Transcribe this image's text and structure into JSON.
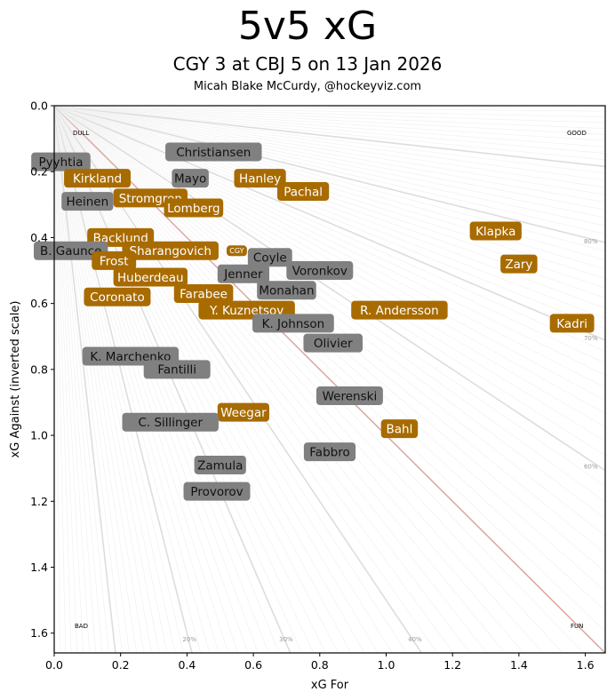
{
  "chart_data": {
    "type": "scatter",
    "title": "5v5 xG",
    "subtitle": "CGY 3 at CBJ 5 on 13 Jan 2026",
    "credit": "Micah Blake McCurdy, @hockeyviz.com",
    "xlabel": "xG For",
    "ylabel": "xG Against (inverted scale)",
    "xlim": [
      0,
      1.66
    ],
    "ylim": [
      0,
      1.66
    ],
    "y_inverted": true,
    "xticks": [
      "0.0",
      "0.2",
      "0.4",
      "0.6",
      "0.8",
      "1.0",
      "1.2",
      "1.4",
      "1.6"
    ],
    "yticks": [
      "0.0",
      "0.2",
      "0.4",
      "0.6",
      "0.8",
      "1.0",
      "1.2",
      "1.4",
      "1.6"
    ],
    "corner_labels": {
      "top_left": "DULL",
      "top_right": "GOOD",
      "bottom_left": "BAD",
      "bottom_right": "FUN"
    },
    "share_lines_labels": {
      "bottom": [
        "20%",
        "30%",
        "40%"
      ],
      "right": [
        "60%",
        "70%",
        "80%"
      ]
    },
    "colors": {
      "CGY": "#a86b00",
      "CBJ": "#808080",
      "even_line": "#d9a79d",
      "major_ray": "#dddddd",
      "minor_ray": "#f2f2f2"
    },
    "points": [
      {
        "label": "Pyyhtia",
        "team": "CBJ",
        "x": 0.02,
        "y": 0.17
      },
      {
        "label": "Christiansen",
        "team": "CBJ",
        "x": 0.48,
        "y": 0.14
      },
      {
        "label": "Kirkland",
        "team": "CGY",
        "x": 0.13,
        "y": 0.22
      },
      {
        "label": "Mayo",
        "team": "CBJ",
        "x": 0.41,
        "y": 0.22
      },
      {
        "label": "Hanley",
        "team": "CGY",
        "x": 0.62,
        "y": 0.22
      },
      {
        "label": "Pachal",
        "team": "CGY",
        "x": 0.75,
        "y": 0.26
      },
      {
        "label": "Heinen",
        "team": "CBJ",
        "x": 0.1,
        "y": 0.29
      },
      {
        "label": "Stromgren",
        "team": "CGY",
        "x": 0.29,
        "y": 0.28
      },
      {
        "label": "Lomberg",
        "team": "CGY",
        "x": 0.42,
        "y": 0.31
      },
      {
        "label": "Klapka",
        "team": "CGY",
        "x": 1.33,
        "y": 0.38
      },
      {
        "label": "Backlund",
        "team": "CGY",
        "x": 0.2,
        "y": 0.4
      },
      {
        "label": "B. Gaunce",
        "team": "CBJ",
        "x": 0.05,
        "y": 0.44
      },
      {
        "label": "Sharangovich",
        "team": "CGY",
        "x": 0.35,
        "y": 0.44
      },
      {
        "label": "CGY",
        "team": "CGY",
        "x": 0.55,
        "y": 0.44,
        "team_total": true
      },
      {
        "label": "Coyle",
        "team": "CBJ",
        "x": 0.65,
        "y": 0.46
      },
      {
        "label": "Frost",
        "team": "CGY",
        "x": 0.18,
        "y": 0.47
      },
      {
        "label": "Zary",
        "team": "CGY",
        "x": 1.4,
        "y": 0.48
      },
      {
        "label": "Voronkov",
        "team": "CBJ",
        "x": 0.8,
        "y": 0.5
      },
      {
        "label": "Jenner",
        "team": "CBJ",
        "x": 0.57,
        "y": 0.51
      },
      {
        "label": "Huberdeau",
        "team": "CGY",
        "x": 0.29,
        "y": 0.52
      },
      {
        "label": "Monahan",
        "team": "CBJ",
        "x": 0.7,
        "y": 0.56
      },
      {
        "label": "Farabee",
        "team": "CGY",
        "x": 0.45,
        "y": 0.57
      },
      {
        "label": "Coronato",
        "team": "CGY",
        "x": 0.19,
        "y": 0.58
      },
      {
        "label": "Y. Kuznetsov",
        "team": "CGY",
        "x": 0.58,
        "y": 0.62
      },
      {
        "label": "R. Andersson",
        "team": "CGY",
        "x": 1.04,
        "y": 0.62
      },
      {
        "label": "K. Johnson",
        "team": "CBJ",
        "x": 0.72,
        "y": 0.66
      },
      {
        "label": "Kadri",
        "team": "CGY",
        "x": 1.56,
        "y": 0.66
      },
      {
        "label": "Olivier",
        "team": "CBJ",
        "x": 0.84,
        "y": 0.72
      },
      {
        "label": "K. Marchenko",
        "team": "CBJ",
        "x": 0.23,
        "y": 0.76
      },
      {
        "label": "Fantilli",
        "team": "CBJ",
        "x": 0.37,
        "y": 0.8
      },
      {
        "label": "Werenski",
        "team": "CBJ",
        "x": 0.89,
        "y": 0.88
      },
      {
        "label": "Weegar",
        "team": "CGY",
        "x": 0.57,
        "y": 0.93
      },
      {
        "label": "Bahl",
        "team": "CGY",
        "x": 1.04,
        "y": 0.98
      },
      {
        "label": "C. Sillinger",
        "team": "CBJ",
        "x": 0.35,
        "y": 0.96
      },
      {
        "label": "Fabbro",
        "team": "CBJ",
        "x": 0.83,
        "y": 1.05
      },
      {
        "label": "Zamula",
        "team": "CBJ",
        "x": 0.5,
        "y": 1.09
      },
      {
        "label": "Provorov",
        "team": "CBJ",
        "x": 0.49,
        "y": 1.17
      }
    ]
  }
}
